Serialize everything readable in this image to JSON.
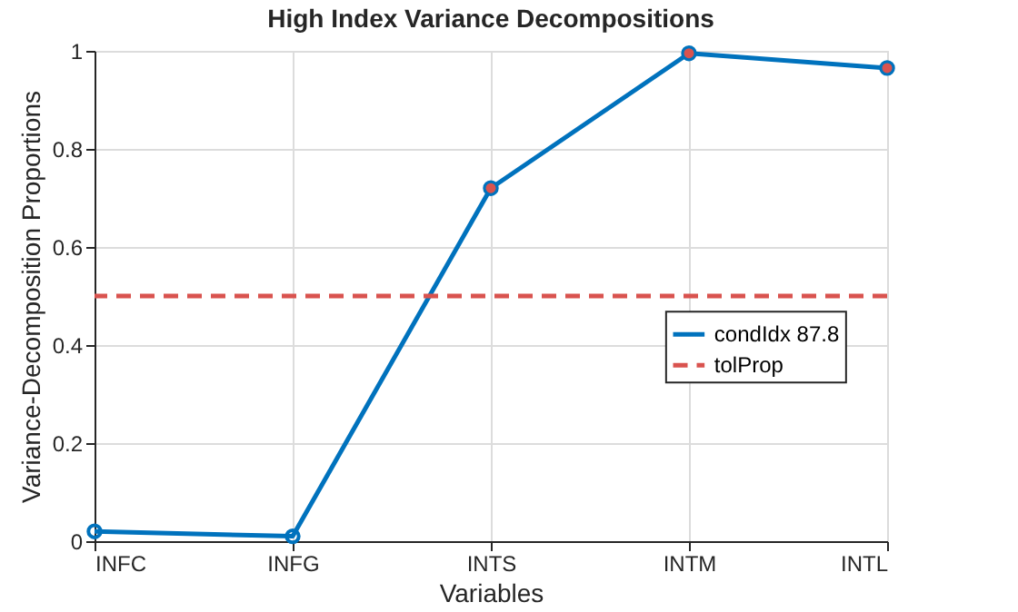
{
  "chart_data": {
    "type": "line",
    "title": "High Index Variance Decompositions",
    "xlabel": "Variables",
    "ylabel": "Variance-Decomposition Proportions",
    "categories": [
      "INFC",
      "INFG",
      "INTS",
      "INTM",
      "INTL"
    ],
    "series": [
      {
        "name": "condIdx 87.8",
        "color": "#0072bd",
        "values": [
          0.02,
          0.01,
          0.72,
          0.995,
          0.965
        ],
        "marker": "circle"
      },
      {
        "type": "scatter",
        "color": "#d9534f",
        "values": [
          null,
          null,
          0.72,
          0.995,
          0.965
        ],
        "marker": "circle"
      }
    ],
    "ref_lines": [
      {
        "axis": "y",
        "value": 0.5,
        "label": "tolProp",
        "color": "#d9534f",
        "line_style": "dashed"
      }
    ],
    "ylim": [
      0,
      1
    ],
    "yticks": [
      0,
      0.2,
      0.4,
      0.6,
      0.8,
      1
    ],
    "grid": true,
    "legend": "right"
  }
}
